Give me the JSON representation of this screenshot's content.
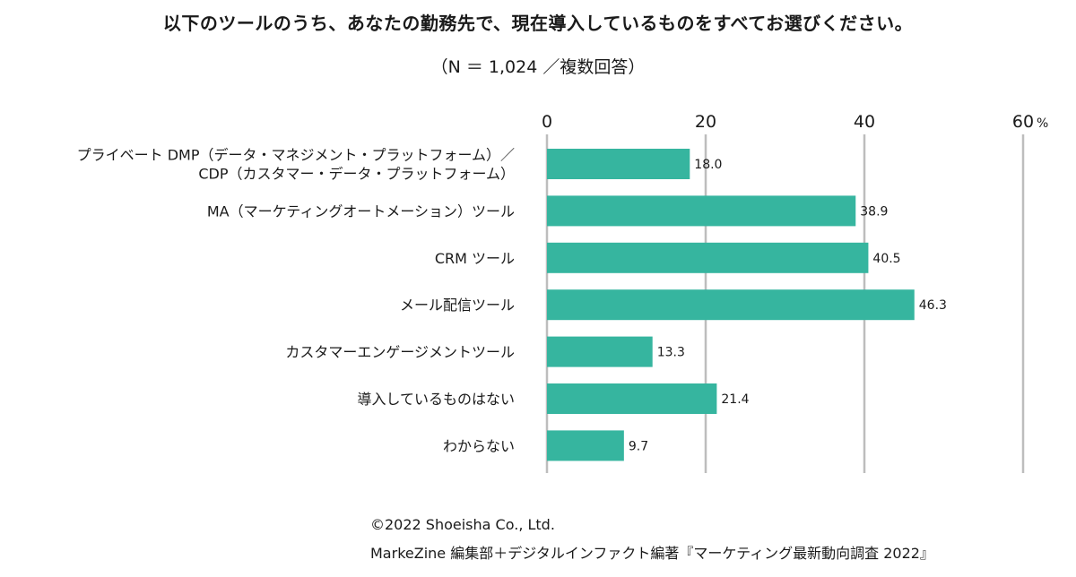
{
  "chart_data": {
    "type": "bar",
    "orientation": "horizontal",
    "title": "以下のツールのうち、あなたの勤務先で、現在導入しているものをすべてお選びください。",
    "subtitle": "（N ＝ 1,024 ／複数回答）",
    "categories": [
      [
        "プライベート DMP（データ・マネジメント・プラットフォーム）／",
        "CDP（カスタマー・データ・プラットフォーム）"
      ],
      [
        "MA（マーケティングオートメーション）ツール"
      ],
      [
        "CRM ツール"
      ],
      [
        "メール配信ツール"
      ],
      [
        "カスタマーエンゲージメントツール"
      ],
      [
        "導入しているものはない"
      ],
      [
        "わからない"
      ]
    ],
    "values": [
      18.0,
      38.9,
      40.5,
      46.3,
      13.3,
      21.4,
      9.7
    ],
    "value_labels": [
      "18.0",
      "38.9",
      "40.5",
      "46.3",
      "13.3",
      "21.4",
      "9.7"
    ],
    "xlim": [
      0,
      60
    ],
    "ticks": [
      0,
      20,
      40,
      60
    ],
    "tick_labels": [
      "0",
      "20",
      "40",
      "60"
    ],
    "unit_label": "%",
    "bar_color": "#36b59f",
    "grid_color": "#bdbdbd",
    "grid": true
  },
  "footer": {
    "copyright": "©2022 Shoeisha Co., Ltd.",
    "source": "MarkeZine 編集部＋デジタルインファクト編著『マーケティング最新動向調査 2022』"
  }
}
